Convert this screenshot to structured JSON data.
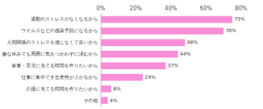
{
  "chart_data": {
    "type": "bar",
    "orientation": "horizontal",
    "categories": [
      "通勤のストレスがなくなるから",
      "ウイルスなどの感染予防になるから",
      "人間関係のストレスを感じなくて良いから",
      "急な休みでも周囲に気をつかわずに済むから",
      "家事・育児に充てる時間を作りたいから",
      "仕事に集中でき生産性が上がるから",
      "介護に充てる時間を作りたいから",
      "その他"
    ],
    "values": [
      75,
      70,
      48,
      44,
      37,
      24,
      6,
      4
    ],
    "value_labels": [
      "75%",
      "70%",
      "48%",
      "44%",
      "37%",
      "24%",
      "6%",
      "4%"
    ],
    "color": "#f78fd6",
    "xlim": [
      0,
      80
    ],
    "xticks": [
      {
        "value": 0,
        "label": "0%"
      },
      {
        "value": 20,
        "label": "20%"
      },
      {
        "value": 40,
        "label": "40%"
      },
      {
        "value": 60,
        "label": "60%"
      },
      {
        "value": 80,
        "label": "80%"
      }
    ],
    "grid": false,
    "data_labels": true
  }
}
